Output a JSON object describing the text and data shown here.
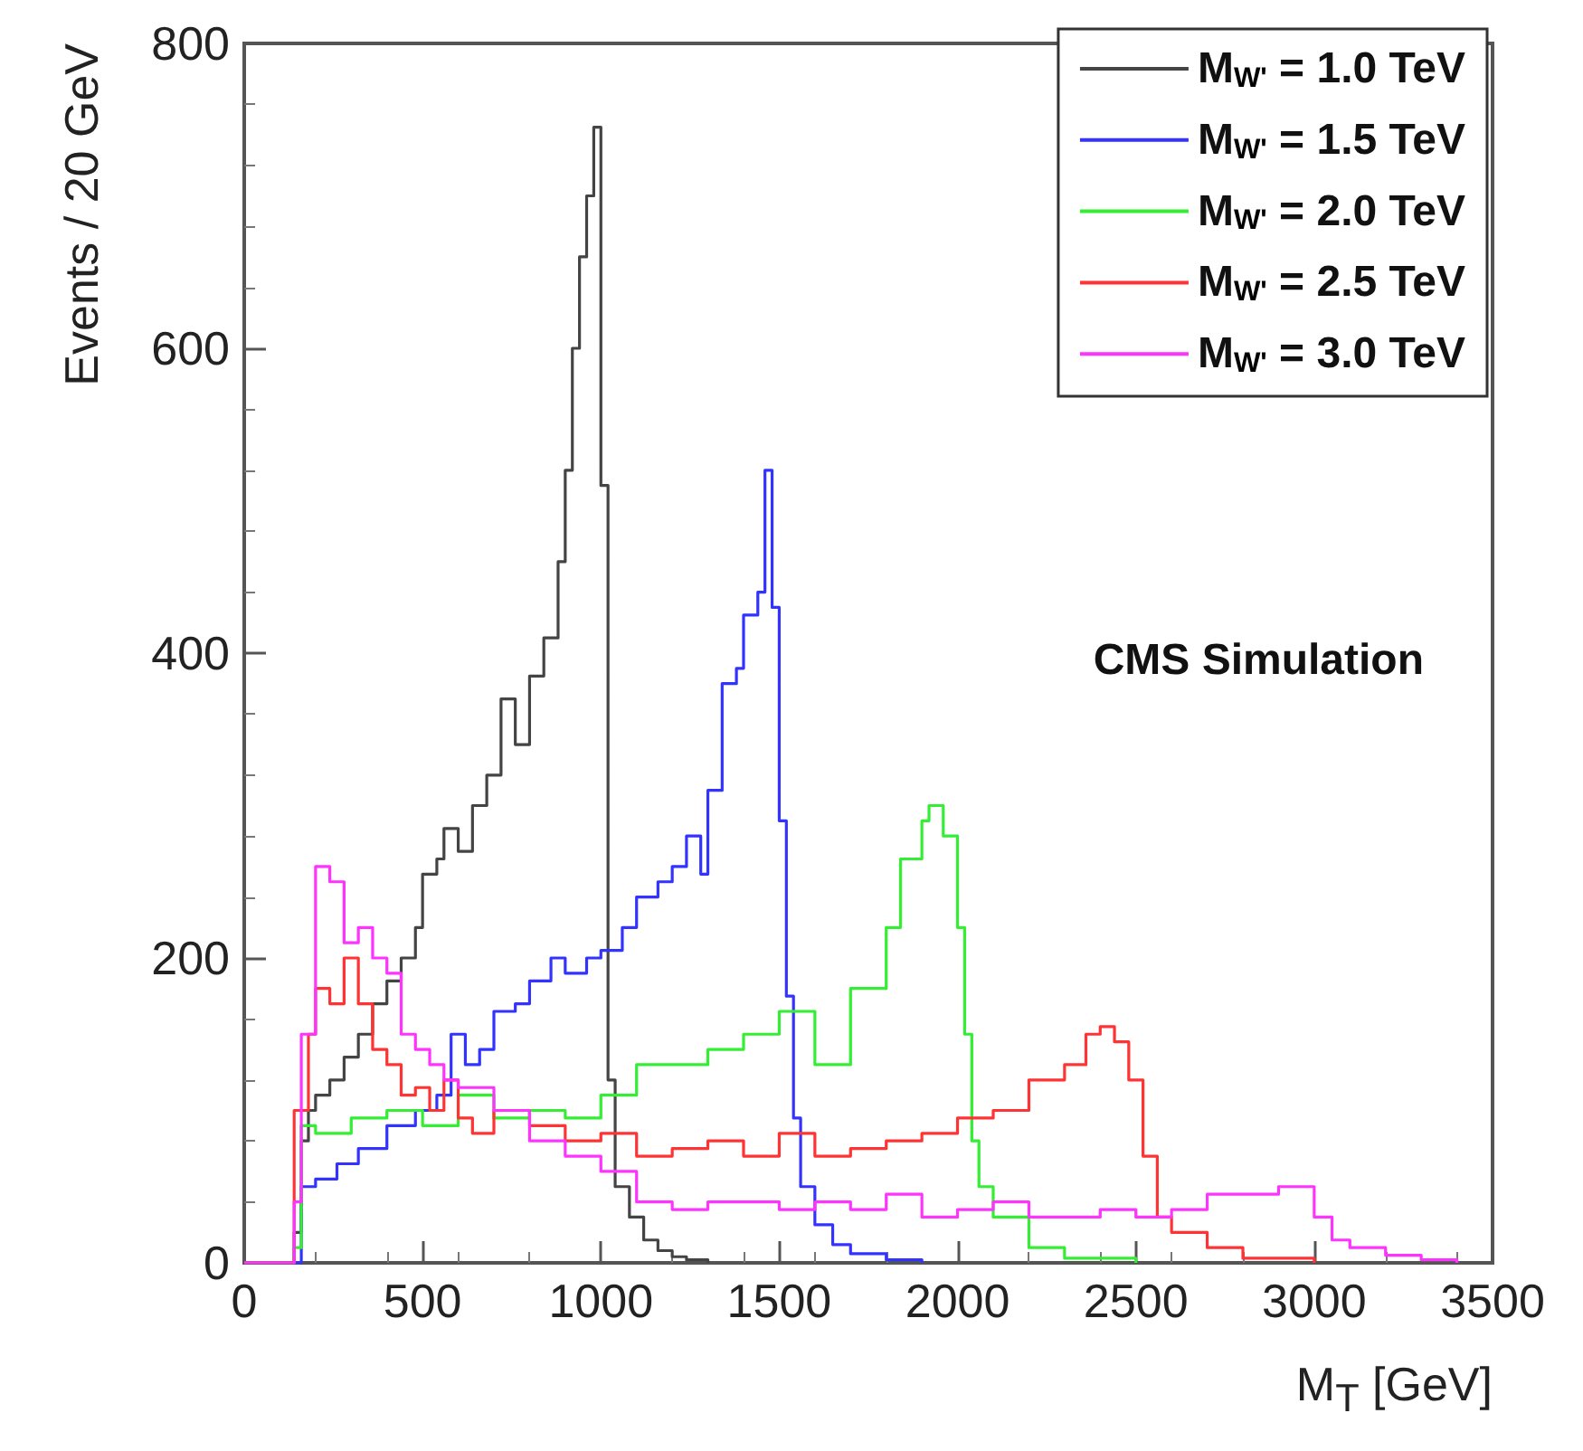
{
  "chart_data": {
    "type": "step",
    "xlabel": "M$_{T}$ [GeV]",
    "ylabel": "Events / 20 GeV",
    "xlim": [
      0,
      3500
    ],
    "xticks": [
      0,
      500,
      1000,
      1500,
      2000,
      2500,
      3000,
      3500
    ],
    "ylim": [
      0,
      800
    ],
    "yticks": [
      0,
      200,
      400,
      600,
      800
    ],
    "grid": false,
    "legend": "top right",
    "annotations": [
      "CMS Simulation"
    ],
    "series": [
      {
        "name": "M$_{W'}$ = 1.0 TeV",
        "color": "#444444",
        "x": [
          0,
          140,
          160,
          180,
          200,
          240,
          280,
          320,
          360,
          400,
          440,
          480,
          500,
          540,
          560,
          600,
          640,
          680,
          720,
          760,
          800,
          840,
          880,
          900,
          920,
          940,
          960,
          980,
          1000,
          1020,
          1040,
          1080,
          1120,
          1160,
          1200,
          1240,
          1300
        ],
        "values": [
          0,
          20,
          80,
          100,
          110,
          120,
          135,
          150,
          170,
          185,
          200,
          220,
          255,
          265,
          285,
          270,
          300,
          320,
          370,
          340,
          385,
          410,
          460,
          520,
          600,
          660,
          700,
          745,
          510,
          120,
          50,
          30,
          15,
          8,
          4,
          2,
          0
        ]
      },
      {
        "name": "M$_{W'}$ = 1.5 TeV",
        "color": "#3333ff",
        "x": [
          0,
          160,
          200,
          260,
          320,
          400,
          480,
          540,
          580,
          620,
          660,
          700,
          760,
          800,
          860,
          900,
          960,
          1000,
          1060,
          1100,
          1160,
          1200,
          1240,
          1280,
          1300,
          1340,
          1380,
          1400,
          1440,
          1460,
          1480,
          1500,
          1520,
          1540,
          1560,
          1600,
          1650,
          1700,
          1800,
          1900
        ],
        "values": [
          0,
          50,
          55,
          65,
          75,
          90,
          100,
          110,
          150,
          130,
          140,
          165,
          170,
          185,
          200,
          190,
          200,
          205,
          220,
          240,
          250,
          260,
          280,
          255,
          310,
          380,
          390,
          425,
          440,
          520,
          430,
          290,
          175,
          95,
          50,
          25,
          12,
          6,
          2,
          0
        ]
      },
      {
        "name": "M$_{W'}$ = 2.0 TeV",
        "color": "#33ee33",
        "x": [
          0,
          140,
          160,
          200,
          300,
          400,
          500,
          600,
          700,
          800,
          900,
          1000,
          1100,
          1200,
          1300,
          1400,
          1500,
          1600,
          1700,
          1800,
          1840,
          1900,
          1920,
          1960,
          2000,
          2020,
          2040,
          2060,
          2100,
          2200,
          2300,
          2500
        ],
        "values": [
          0,
          10,
          90,
          85,
          95,
          100,
          90,
          110,
          95,
          100,
          95,
          110,
          130,
          130,
          140,
          150,
          165,
          130,
          180,
          220,
          265,
          290,
          300,
          280,
          220,
          150,
          80,
          50,
          30,
          10,
          3,
          0
        ]
      },
      {
        "name": "M$_{W'}$ = 2.5 TeV",
        "color": "#ff3333",
        "x": [
          0,
          140,
          180,
          200,
          240,
          280,
          320,
          360,
          400,
          440,
          480,
          520,
          560,
          600,
          640,
          700,
          800,
          900,
          1000,
          1100,
          1200,
          1300,
          1400,
          1500,
          1600,
          1700,
          1800,
          1900,
          2000,
          2100,
          2200,
          2300,
          2360,
          2400,
          2440,
          2480,
          2520,
          2560,
          2600,
          2700,
          2800,
          3000
        ],
        "values": [
          0,
          100,
          150,
          180,
          170,
          200,
          170,
          140,
          130,
          110,
          115,
          100,
          120,
          95,
          85,
          100,
          90,
          80,
          85,
          70,
          75,
          80,
          70,
          85,
          70,
          75,
          80,
          85,
          95,
          100,
          120,
          130,
          150,
          155,
          145,
          120,
          70,
          30,
          20,
          10,
          3,
          0
        ]
      },
      {
        "name": "M$_{W'}$ = 3.0 TeV",
        "color": "#ff33ff",
        "x": [
          0,
          140,
          160,
          200,
          240,
          280,
          320,
          360,
          400,
          440,
          480,
          520,
          560,
          600,
          700,
          800,
          900,
          1000,
          1100,
          1200,
          1300,
          1400,
          1500,
          1600,
          1700,
          1800,
          1900,
          2000,
          2100,
          2200,
          2300,
          2400,
          2500,
          2600,
          2700,
          2800,
          2900,
          2960,
          3000,
          3050,
          3100,
          3200,
          3300,
          3400
        ],
        "values": [
          0,
          40,
          150,
          260,
          250,
          210,
          220,
          200,
          190,
          150,
          140,
          130,
          120,
          115,
          100,
          80,
          70,
          60,
          40,
          35,
          40,
          40,
          35,
          40,
          35,
          45,
          30,
          35,
          40,
          30,
          30,
          35,
          30,
          35,
          45,
          45,
          50,
          50,
          30,
          15,
          10,
          5,
          2,
          0
        ]
      }
    ]
  }
}
